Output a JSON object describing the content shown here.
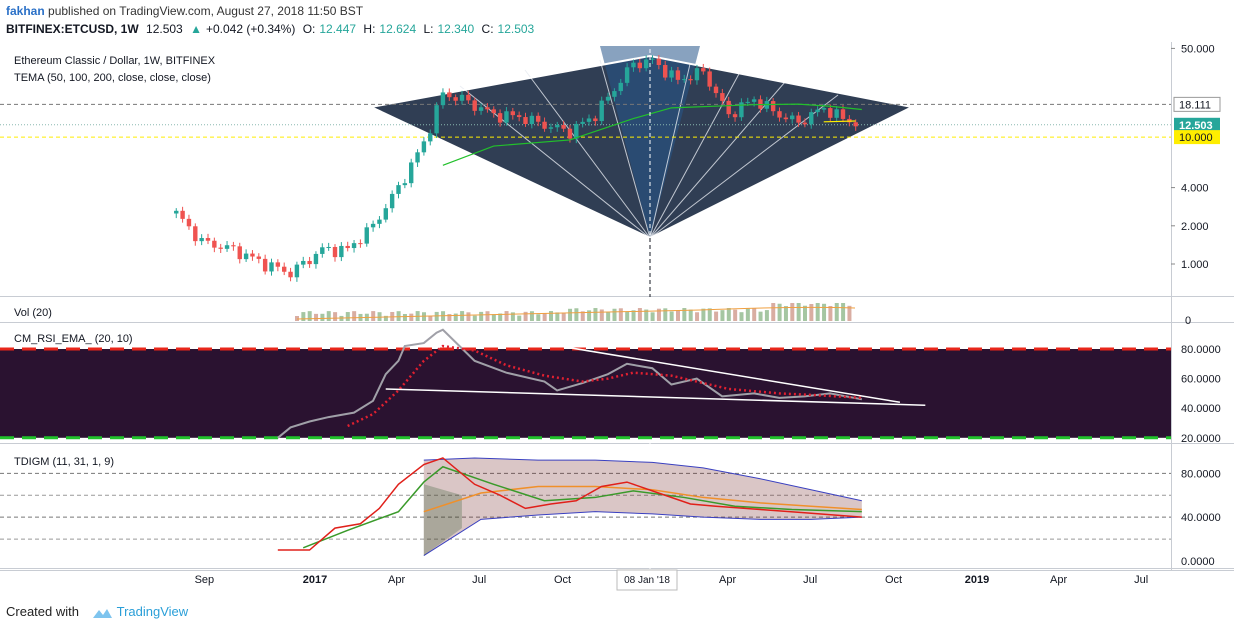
{
  "header": {
    "user": "fakhan",
    "published": "published on TradingView.com, August 27, 2018 11:50 BST",
    "symbol": "BITFINEX:ETCUSD, 1W",
    "last": "12.503",
    "change": "+0.042 (+0.34%)",
    "o_label": "O:",
    "o_value": "12.447",
    "h_label": "H:",
    "h_value": "12.624",
    "l_label": "L:",
    "l_value": "12.340",
    "c_label": "C:",
    "c_value": "12.503"
  },
  "footer": {
    "created": "Created with",
    "brand": "TradingView"
  },
  "colors": {
    "up": "#26a69a",
    "down": "#ef5350",
    "panel_bg": "#1e2e45",
    "rsi_bg": "#2a1230",
    "green_line": "#22c02b"
  },
  "chart_data": [
    {
      "type": "candlestick",
      "title": "Ethereum Classic / Dollar, 1W, BITFINEX",
      "indicator": "TEMA (50, 100, 200, close, close, close)",
      "y_scale": "log",
      "y_ticks": [
        "50.000",
        "4.000",
        "2.000",
        "1.000"
      ],
      "y_tick_values": [
        50,
        4,
        2,
        1
      ],
      "price_labels": [
        {
          "text": "18.111",
          "value": 18.111,
          "style": "white"
        },
        {
          "text": "12.503",
          "value": 12.503,
          "style": "green"
        },
        {
          "text": "10.000",
          "value": 10.0,
          "style": "yellow"
        }
      ],
      "x_ticks": [
        "Sep",
        "2017",
        "Apr",
        "Jul",
        "Oct",
        "Jan",
        "Apr",
        "Jul",
        "Oct",
        "2019",
        "Apr",
        "Jul"
      ],
      "crosshair_label": "08 Jan '18",
      "close_path": [
        [
          "2016-08-01",
          2.5
        ],
        [
          "2016-08-29",
          1.5
        ],
        [
          "2016-10-03",
          1.3
        ],
        [
          "2016-11-07",
          1.0
        ],
        [
          "2016-12-05",
          0.85
        ],
        [
          "2017-01-09",
          1.3
        ],
        [
          "2017-02-06",
          1.3
        ],
        [
          "2017-03-06",
          2.0
        ],
        [
          "2017-04-03",
          4.0
        ],
        [
          "2017-05-01",
          9.0
        ],
        [
          "2017-05-22",
          22.0
        ],
        [
          "2017-06-12",
          20.0
        ],
        [
          "2017-07-17",
          15.0
        ],
        [
          "2017-08-14",
          14.5
        ],
        [
          "2017-09-11",
          12.5
        ],
        [
          "2017-10-09",
          11.0
        ],
        [
          "2017-11-06",
          15.0
        ],
        [
          "2017-12-04",
          28.0
        ],
        [
          "2017-12-18",
          38.0
        ],
        [
          "2018-01-08",
          40.0
        ],
        [
          "2018-02-05",
          28.0
        ],
        [
          "2018-03-05",
          33.0
        ],
        [
          "2018-04-02",
          15.0
        ],
        [
          "2018-04-30",
          20.0
        ],
        [
          "2018-05-28",
          15.0
        ],
        [
          "2018-06-18",
          13.0
        ],
        [
          "2018-07-16",
          17.0
        ],
        [
          "2018-08-06",
          14.0
        ],
        [
          "2018-08-27",
          12.503
        ]
      ],
      "tema_path": [
        [
          "2017-05-22",
          6.0
        ],
        [
          "2017-07-17",
          8.5
        ],
        [
          "2017-10-09",
          9.5
        ],
        [
          "2017-12-18",
          14.0
        ],
        [
          "2018-01-29",
          17.0
        ],
        [
          "2018-04-30",
          18.0
        ],
        [
          "2018-06-18",
          18.2
        ],
        [
          "2018-07-23",
          17.5
        ],
        [
          "2018-08-27",
          16.5
        ]
      ]
    },
    {
      "type": "bar",
      "title": "Vol (20)",
      "y_ticks": [
        "0"
      ]
    },
    {
      "type": "line",
      "title": "CM_RSI_EMA_ (20, 10)",
      "y_ticks": [
        "80.0000",
        "60.0000",
        "40.0000",
        "20.0000"
      ],
      "y_tick_values": [
        80,
        60,
        40,
        20
      ],
      "upper_band": 80,
      "lower_band": 20,
      "rsi": [
        [
          "2016-11-21",
          20
        ],
        [
          "2016-12-05",
          27
        ],
        [
          "2016-12-26",
          31
        ],
        [
          "2017-01-16",
          34
        ],
        [
          "2017-02-13",
          37
        ],
        [
          "2017-03-06",
          45
        ],
        [
          "2017-03-20",
          63
        ],
        [
          "2017-04-03",
          72
        ],
        [
          "2017-04-10",
          82
        ],
        [
          "2017-05-01",
          84
        ],
        [
          "2017-05-15",
          91
        ],
        [
          "2017-05-22",
          93
        ],
        [
          "2017-06-26",
          72
        ],
        [
          "2017-07-31",
          64
        ],
        [
          "2017-09-11",
          58
        ],
        [
          "2017-09-25",
          52
        ],
        [
          "2017-10-23",
          57
        ],
        [
          "2017-11-20",
          63
        ],
        [
          "2017-12-11",
          70
        ],
        [
          "2018-01-08",
          67
        ],
        [
          "2018-01-29",
          56
        ],
        [
          "2018-02-26",
          60
        ],
        [
          "2018-03-26",
          48
        ],
        [
          "2018-04-30",
          50
        ],
        [
          "2018-05-28",
          47
        ],
        [
          "2018-06-25",
          48
        ],
        [
          "2018-07-23",
          50
        ],
        [
          "2018-08-27",
          46
        ]
      ],
      "ema": [
        [
          "2017-02-06",
          28
        ],
        [
          "2017-03-06",
          36
        ],
        [
          "2017-04-03",
          52
        ],
        [
          "2017-05-01",
          72
        ],
        [
          "2017-05-22",
          82
        ],
        [
          "2017-06-26",
          79
        ],
        [
          "2017-07-31",
          69
        ],
        [
          "2017-09-11",
          62
        ],
        [
          "2017-10-23",
          58
        ],
        [
          "2017-11-20",
          60
        ],
        [
          "2017-12-18",
          64
        ],
        [
          "2018-01-29",
          62
        ],
        [
          "2018-03-05",
          57
        ],
        [
          "2018-04-02",
          53
        ],
        [
          "2018-05-28",
          50
        ],
        [
          "2018-07-02",
          49
        ],
        [
          "2018-08-27",
          47
        ]
      ],
      "trend_upper": [
        [
          "2017-05-22",
          95
        ],
        [
          "2018-10-08",
          44
        ]
      ],
      "trend_lower": [
        [
          "2017-03-20",
          53
        ],
        [
          "2018-11-05",
          42
        ]
      ]
    },
    {
      "type": "line",
      "title": "TDIGM (11, 31, 1, 9)",
      "y_ticks": [
        "80.0000",
        "40.0000",
        "0.0000"
      ],
      "y_tick_values": [
        80,
        40,
        0
      ],
      "red": [
        [
          "2016-11-21",
          10
        ],
        [
          "2016-12-26",
          10
        ],
        [
          "2017-01-09",
          20
        ],
        [
          "2017-01-23",
          30
        ],
        [
          "2017-02-20",
          34
        ],
        [
          "2017-03-13",
          48
        ],
        [
          "2017-04-03",
          70
        ],
        [
          "2017-05-01",
          88
        ],
        [
          "2017-05-22",
          94
        ],
        [
          "2017-06-26",
          70
        ],
        [
          "2017-07-24",
          60
        ],
        [
          "2017-08-21",
          48
        ],
        [
          "2017-09-18",
          52
        ],
        [
          "2017-10-16",
          55
        ],
        [
          "2017-11-13",
          68
        ],
        [
          "2017-12-11",
          72
        ],
        [
          "2018-01-08",
          64
        ],
        [
          "2018-02-19",
          52
        ],
        [
          "2018-03-19",
          50
        ],
        [
          "2018-05-07",
          47
        ],
        [
          "2018-06-25",
          44
        ],
        [
          "2018-08-27",
          40
        ]
      ],
      "green": [
        [
          "2016-12-19",
          12
        ],
        [
          "2017-02-06",
          28
        ],
        [
          "2017-04-03",
          45
        ],
        [
          "2017-05-01",
          72
        ],
        [
          "2017-05-22",
          86
        ],
        [
          "2017-07-17",
          70
        ],
        [
          "2017-09-11",
          55
        ],
        [
          "2017-11-06",
          58
        ],
        [
          "2017-12-18",
          64
        ],
        [
          "2018-02-12",
          58
        ],
        [
          "2018-04-09",
          50
        ],
        [
          "2018-06-11",
          47
        ],
        [
          "2018-08-27",
          45
        ]
      ],
      "orange": [
        [
          "2017-05-01",
          45
        ],
        [
          "2017-07-03",
          62
        ],
        [
          "2017-09-04",
          68
        ],
        [
          "2017-11-06",
          68
        ],
        [
          "2018-01-08",
          65
        ],
        [
          "2018-03-05",
          58
        ],
        [
          "2018-05-07",
          53
        ],
        [
          "2018-07-02",
          50
        ],
        [
          "2018-08-27",
          47
        ]
      ],
      "upper_band": [
        [
          "2017-05-01",
          92
        ],
        [
          "2017-06-26",
          94
        ],
        [
          "2017-09-04",
          92
        ],
        [
          "2017-11-06",
          92
        ],
        [
          "2018-01-08",
          90
        ],
        [
          "2018-03-05",
          85
        ],
        [
          "2018-05-07",
          75
        ],
        [
          "2018-07-02",
          65
        ],
        [
          "2018-08-27",
          55
        ]
      ],
      "lower_band": [
        [
          "2017-05-01",
          5
        ],
        [
          "2017-07-03",
          38
        ],
        [
          "2017-09-04",
          42
        ],
        [
          "2017-11-06",
          45
        ],
        [
          "2018-01-08",
          43
        ],
        [
          "2018-03-05",
          40
        ],
        [
          "2018-05-07",
          38
        ],
        [
          "2018-07-02",
          38
        ],
        [
          "2018-08-27",
          40
        ]
      ]
    }
  ]
}
